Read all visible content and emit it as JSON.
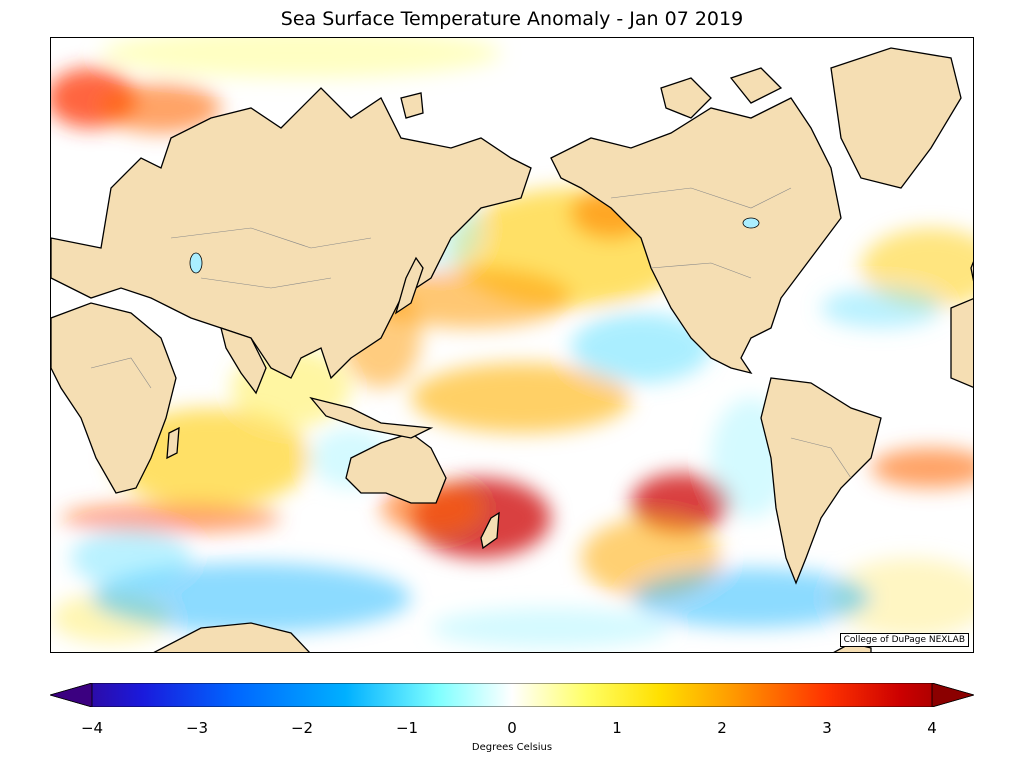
{
  "title": "Sea Surface Temperature Anomaly - Jan 07 2019",
  "credit": "College of DuPage NEXLAB",
  "colorbar": {
    "ticks": [
      "−4",
      "−3",
      "−2",
      "−1",
      "0",
      "1",
      "2",
      "3",
      "4"
    ],
    "unit_label": "Degrees Celsius",
    "stops": [
      "#3b0080",
      "#1a1adc",
      "#0066ff",
      "#00b0ff",
      "#7fffff",
      "#ffffff",
      "#ffff66",
      "#ffe000",
      "#ff9900",
      "#ff3300",
      "#cc0000",
      "#8b0000"
    ]
  },
  "colors": {
    "land": "#f5deb3",
    "ocean_neutral": "#ffffff",
    "coast": "#000000",
    "border": "#888888"
  }
}
